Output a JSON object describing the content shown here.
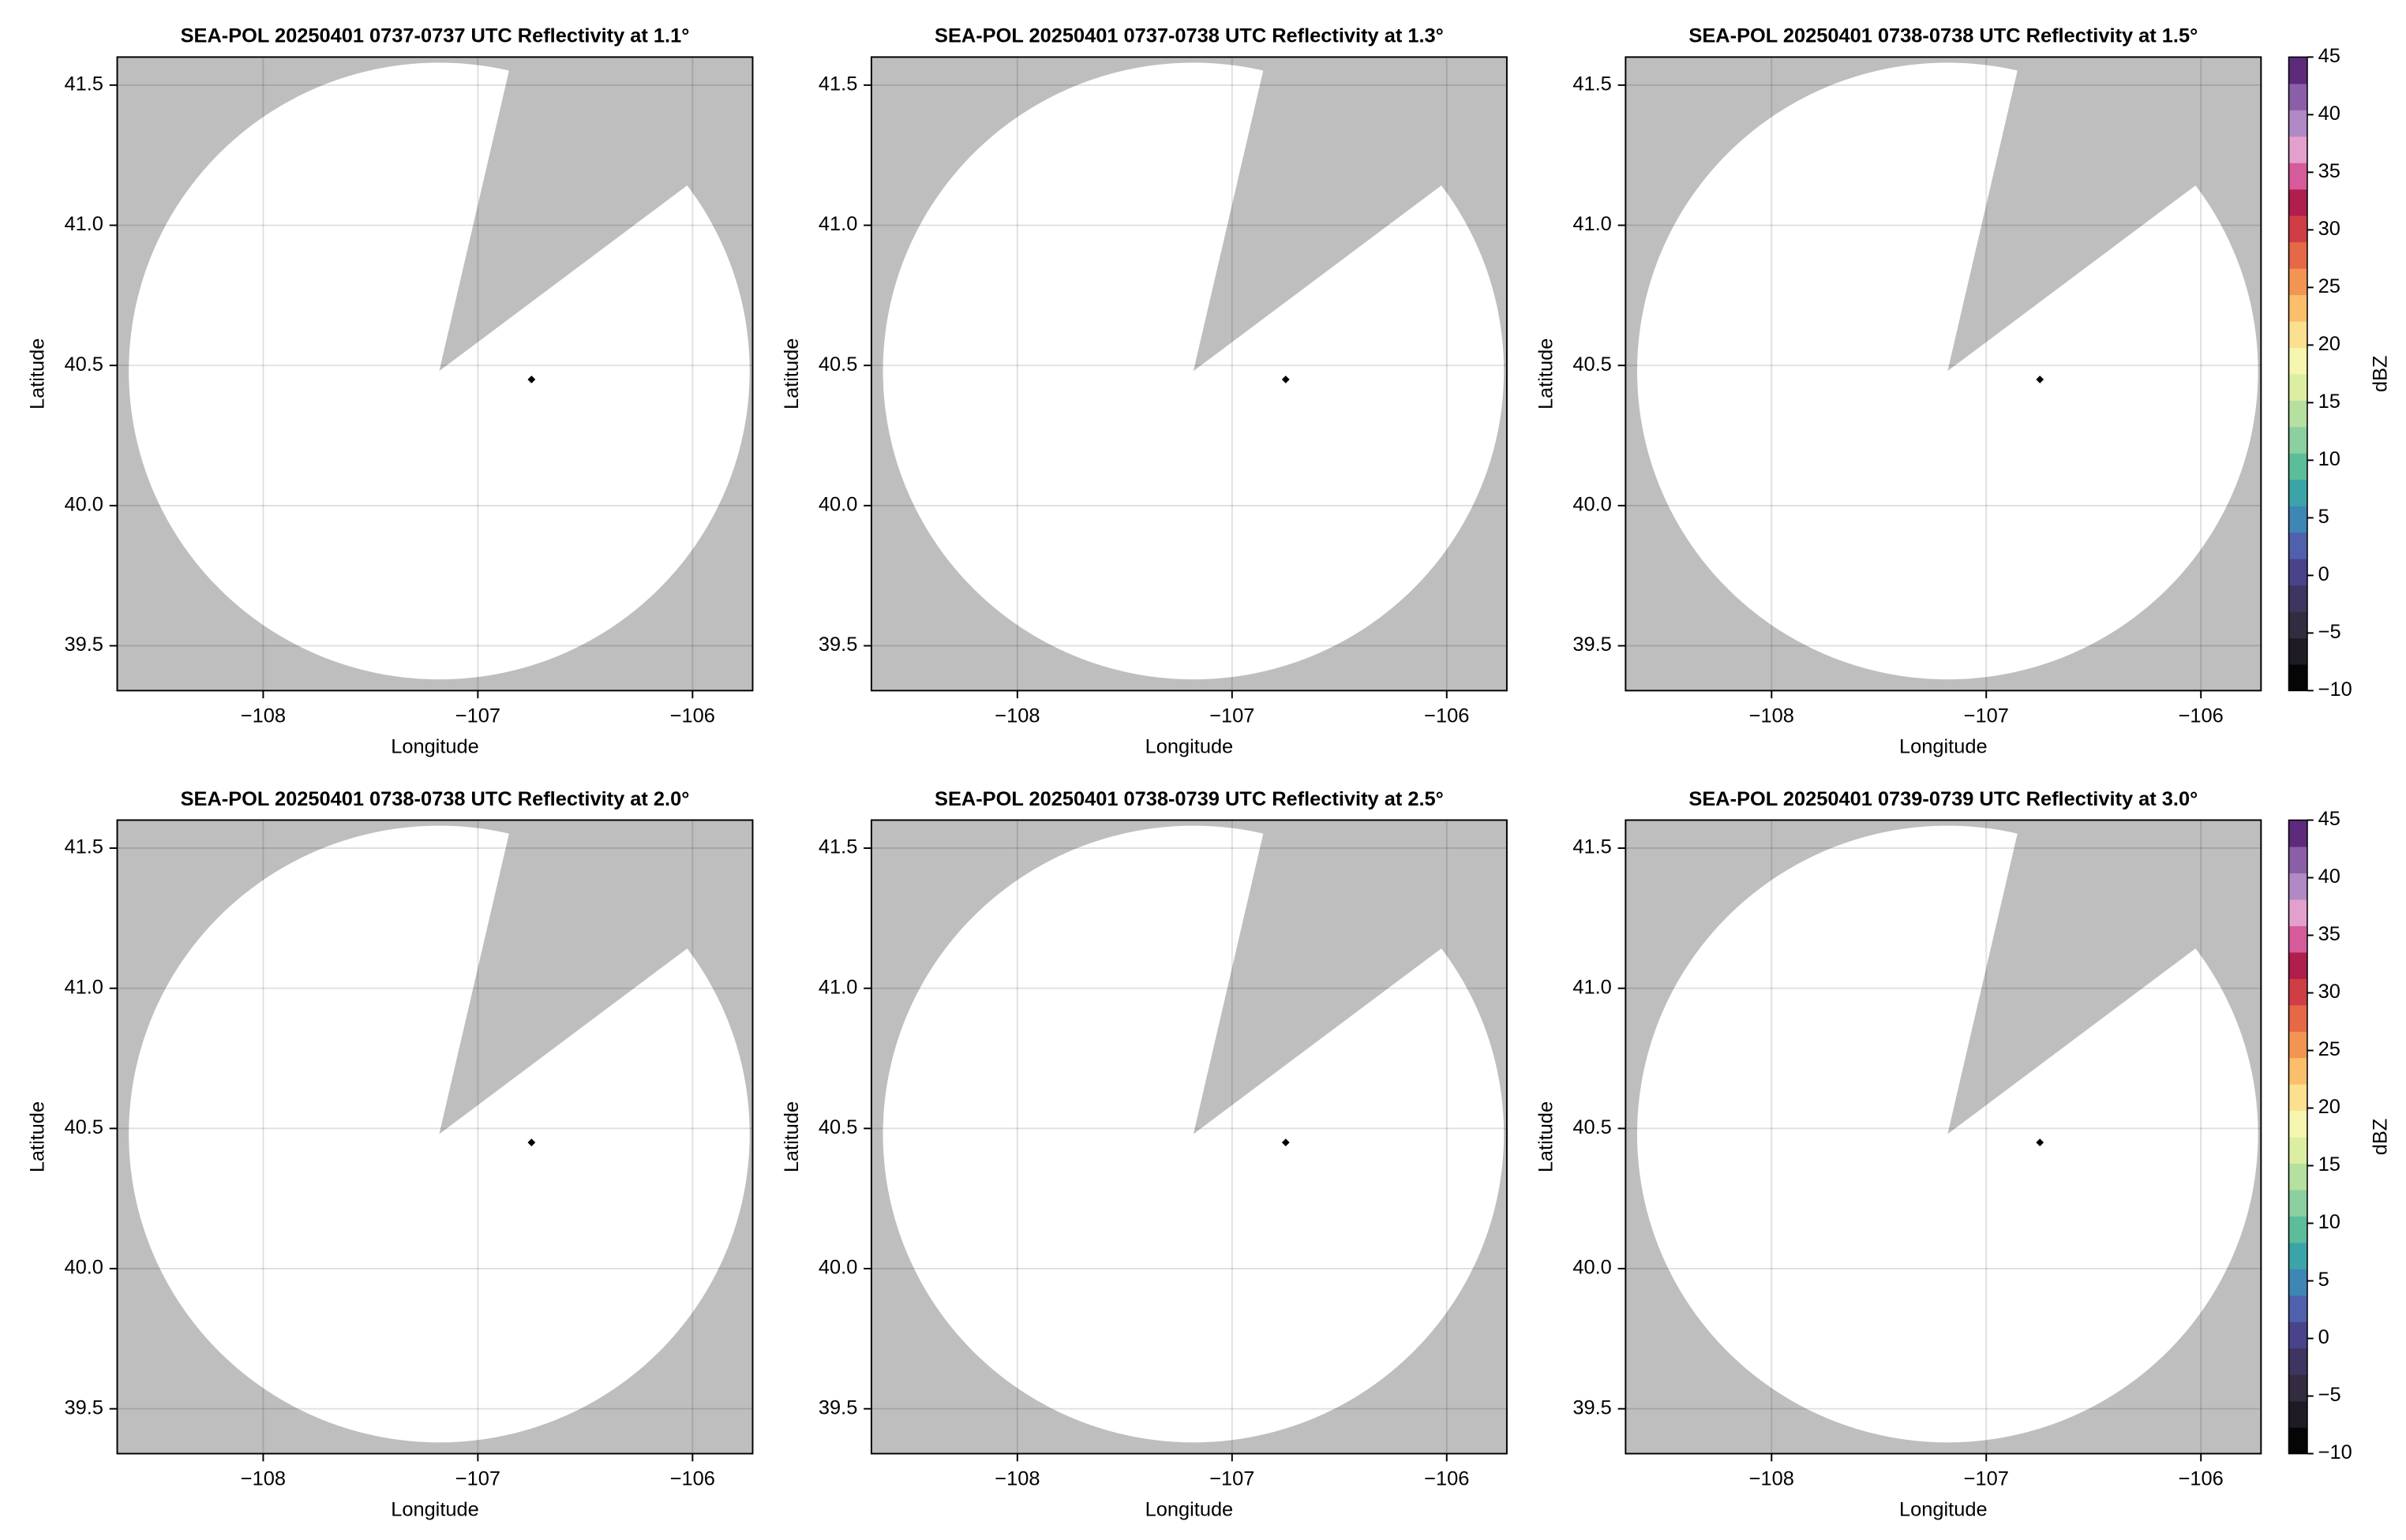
{
  "chart_data": [
    {
      "type": "radar-ppi",
      "title": "SEA-POL 20250401 0737-0737 UTC Reflectivity at 1.1°",
      "xlabel": "Longitude",
      "ylabel": "Latitude",
      "xlim": [
        -108.68,
        -105.72
      ],
      "ylim": [
        39.34,
        41.6
      ],
      "xticks": [
        {
          "value": -108,
          "label": "−108"
        },
        {
          "value": -107,
          "label": "−107"
        },
        {
          "value": -106,
          "label": "−106"
        }
      ],
      "yticks": [
        39.5,
        {
          "value": 40,
          "label": "40.0"
        },
        40.5,
        {
          "value": 41,
          "label": "41.0"
        },
        41.5
      ],
      "grid": true,
      "coverage": {
        "center": [
          -107.18,
          40.48
        ],
        "radius": 1.1,
        "blocked": [
          13,
          53
        ]
      },
      "site": [
        -106.75,
        40.45
      ]
    },
    {
      "type": "radar-ppi",
      "title": "SEA-POL 20250401 0737-0738 UTC Reflectivity at 1.3°",
      "xlabel": "Longitude",
      "ylabel": "Latitude",
      "xlim": [
        -108.68,
        -105.72
      ],
      "ylim": [
        39.34,
        41.6
      ],
      "xticks": [
        {
          "value": -108,
          "label": "−108"
        },
        {
          "value": -107,
          "label": "−107"
        },
        {
          "value": -106,
          "label": "−106"
        }
      ],
      "yticks": [
        39.5,
        {
          "value": 40,
          "label": "40.0"
        },
        40.5,
        {
          "value": 41,
          "label": "41.0"
        },
        41.5
      ],
      "grid": true,
      "coverage": {
        "center": [
          -107.18,
          40.48
        ],
        "radius": 1.1,
        "blocked": [
          13,
          53
        ]
      },
      "site": [
        -106.75,
        40.45
      ]
    },
    {
      "type": "radar-ppi",
      "title": "SEA-POL 20250401 0738-0738 UTC Reflectivity at 1.5°",
      "xlabel": "Longitude",
      "ylabel": "Latitude",
      "xlim": [
        -108.68,
        -105.72
      ],
      "ylim": [
        39.34,
        41.6
      ],
      "xticks": [
        {
          "value": -108,
          "label": "−108"
        },
        {
          "value": -107,
          "label": "−107"
        },
        {
          "value": -106,
          "label": "−106"
        }
      ],
      "yticks": [
        39.5,
        {
          "value": 40,
          "label": "40.0"
        },
        40.5,
        {
          "value": 41,
          "label": "41.0"
        },
        41.5
      ],
      "grid": true,
      "coverage": {
        "center": [
          -107.18,
          40.48
        ],
        "radius": 1.1,
        "blocked": [
          13,
          53
        ]
      },
      "site": [
        -106.75,
        40.45
      ],
      "colorbar": {
        "label": "dBZ",
        "lim": [
          -10,
          45
        ],
        "ticks": [
          {
            "value": -10,
            "label": "−10"
          },
          {
            "value": -5,
            "label": "−5"
          },
          0,
          5,
          10,
          15,
          20,
          25,
          30,
          35,
          40,
          45
        ],
        "colors": [
          "#050505",
          "#1f1b24",
          "#332b3f",
          "#3f3560",
          "#48438a",
          "#4f60ad",
          "#3e86b6",
          "#3ba4a8",
          "#5cbd9a",
          "#8ccfa0",
          "#b6e09f",
          "#dcefa0",
          "#f6f6b0",
          "#fbe08f",
          "#fbbf6c",
          "#f39552",
          "#e56847",
          "#cf3e45",
          "#b01e4c",
          "#d65b9a",
          "#e4a0cd",
          "#b089c5",
          "#8a5fa8",
          "#5e2a7c"
        ]
      }
    },
    {
      "type": "radar-ppi",
      "title": "SEA-POL 20250401 0738-0738 UTC Reflectivity at 2.0°",
      "xlabel": "Longitude",
      "ylabel": "Latitude",
      "xlim": [
        -108.68,
        -105.72
      ],
      "ylim": [
        39.34,
        41.6
      ],
      "xticks": [
        {
          "value": -108,
          "label": "−108"
        },
        {
          "value": -107,
          "label": "−107"
        },
        {
          "value": -106,
          "label": "−106"
        }
      ],
      "yticks": [
        39.5,
        {
          "value": 40,
          "label": "40.0"
        },
        40.5,
        {
          "value": 41,
          "label": "41.0"
        },
        41.5
      ],
      "grid": true,
      "coverage": {
        "center": [
          -107.18,
          40.48
        ],
        "radius": 1.1,
        "blocked": [
          13,
          53
        ]
      },
      "site": [
        -106.75,
        40.45
      ]
    },
    {
      "type": "radar-ppi",
      "title": "SEA-POL 20250401 0738-0739 UTC Reflectivity at 2.5°",
      "xlabel": "Longitude",
      "ylabel": "Latitude",
      "xlim": [
        -108.68,
        -105.72
      ],
      "ylim": [
        39.34,
        41.6
      ],
      "xticks": [
        {
          "value": -108,
          "label": "−108"
        },
        {
          "value": -107,
          "label": "−107"
        },
        {
          "value": -106,
          "label": "−106"
        }
      ],
      "yticks": [
        39.5,
        {
          "value": 40,
          "label": "40.0"
        },
        40.5,
        {
          "value": 41,
          "label": "41.0"
        },
        41.5
      ],
      "grid": true,
      "coverage": {
        "center": [
          -107.18,
          40.48
        ],
        "radius": 1.1,
        "blocked": [
          13,
          53
        ]
      },
      "site": [
        -106.75,
        40.45
      ]
    },
    {
      "type": "radar-ppi",
      "title": "SEA-POL 20250401 0739-0739 UTC Reflectivity at 3.0°",
      "xlabel": "Longitude",
      "ylabel": "Latitude",
      "xlim": [
        -108.68,
        -105.72
      ],
      "ylim": [
        39.34,
        41.6
      ],
      "xticks": [
        {
          "value": -108,
          "label": "−108"
        },
        {
          "value": -107,
          "label": "−107"
        },
        {
          "value": -106,
          "label": "−106"
        }
      ],
      "yticks": [
        39.5,
        {
          "value": 40,
          "label": "40.0"
        },
        40.5,
        {
          "value": 41,
          "label": "41.0"
        },
        41.5
      ],
      "grid": true,
      "coverage": {
        "center": [
          -107.18,
          40.48
        ],
        "radius": 1.1,
        "blocked": [
          13,
          53
        ]
      },
      "site": [
        -106.75,
        40.45
      ],
      "colorbar": {
        "label": "dBZ",
        "lim": [
          -10,
          45
        ],
        "ticks": [
          {
            "value": -10,
            "label": "−10"
          },
          {
            "value": -5,
            "label": "−5"
          },
          0,
          5,
          10,
          15,
          20,
          25,
          30,
          35,
          40,
          45
        ],
        "colors": [
          "#050505",
          "#1f1b24",
          "#332b3f",
          "#3f3560",
          "#48438a",
          "#4f60ad",
          "#3e86b6",
          "#3ba4a8",
          "#5cbd9a",
          "#8ccfa0",
          "#b6e09f",
          "#dcefa0",
          "#f6f6b0",
          "#fbe08f",
          "#fbbf6c",
          "#f39552",
          "#e56847",
          "#cf3e45",
          "#b01e4c",
          "#d65b9a",
          "#e4a0cd",
          "#b089c5",
          "#8a5fa8",
          "#5e2a7c"
        ]
      }
    }
  ]
}
